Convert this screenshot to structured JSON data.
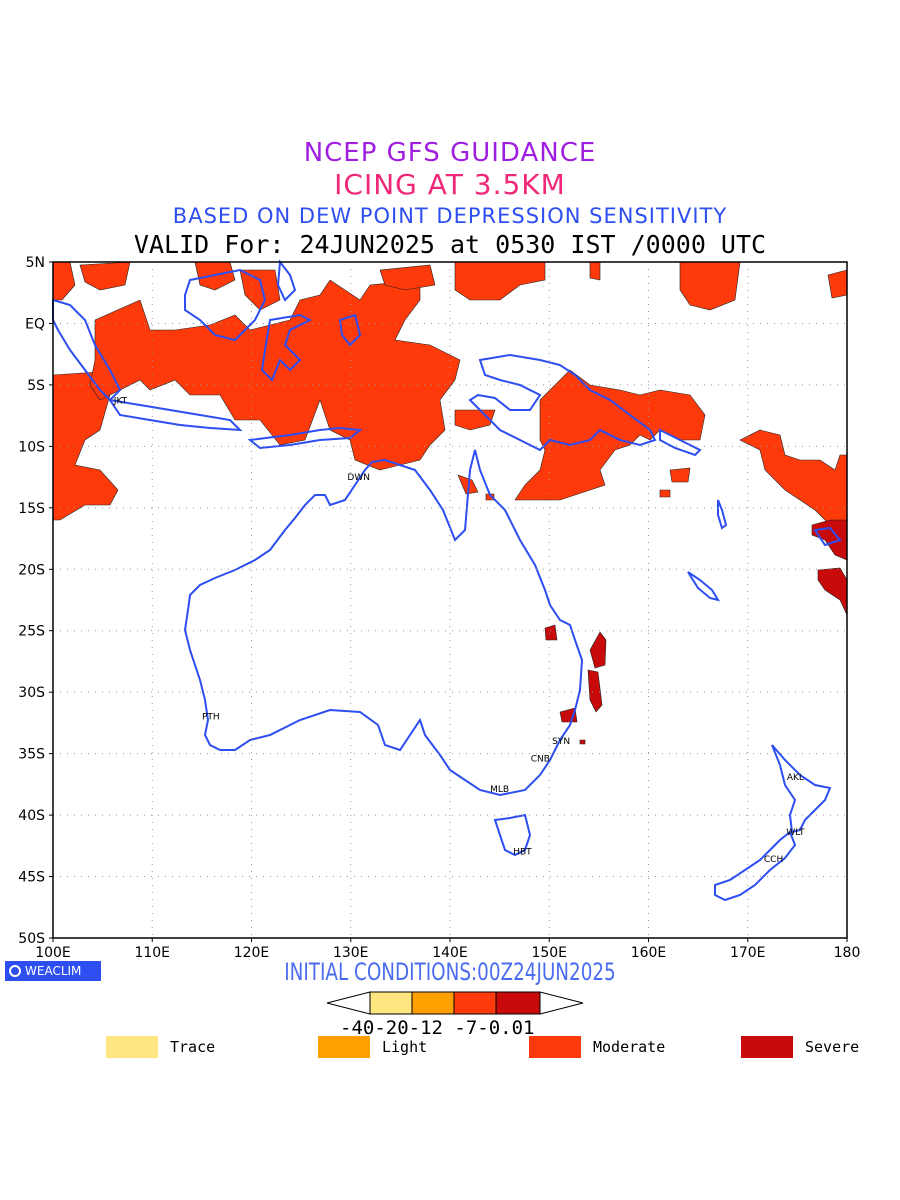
{
  "titles": {
    "line1": "NCEP GFS GUIDANCE",
    "line2": "ICING AT 3.5KM",
    "line3": "BASED ON DEW POINT DEPRESSION SENSITIVITY",
    "line4": "VALID For: 24JUN2025 at 0530 IST /0000 UTC"
  },
  "map": {
    "lon_ticks": [
      "100E",
      "110E",
      "120E",
      "130E",
      "140E",
      "150E",
      "160E",
      "170E",
      "180"
    ],
    "lat_ticks": [
      "5N",
      "EQ",
      "5S",
      "10S",
      "15S",
      "20S",
      "25S",
      "30S",
      "35S",
      "40S",
      "45S",
      "50S"
    ],
    "cities": [
      {
        "label": "JKT",
        "lon": 106.8,
        "lat": -6.2
      },
      {
        "label": "DWN",
        "lon": 130.8,
        "lat": -12.4
      },
      {
        "label": "PTH",
        "lon": 115.9,
        "lat": -31.9
      },
      {
        "label": "SYN",
        "lon": 151.2,
        "lat": -33.9
      },
      {
        "label": "CNB",
        "lon": 149.1,
        "lat": -35.3
      },
      {
        "label": "MLB",
        "lon": 145.0,
        "lat": -37.8
      },
      {
        "label": "HBT",
        "lon": 147.3,
        "lat": -42.9
      },
      {
        "label": "AKL",
        "lon": 174.8,
        "lat": -36.8
      },
      {
        "label": "WLT",
        "lon": 174.8,
        "lat": -41.3
      },
      {
        "label": "CCH",
        "lon": 172.6,
        "lat": -43.5
      }
    ],
    "colors": {
      "coast": "#2d4ef0",
      "moderate": "#ff3a0a",
      "severe": "#c80a0a",
      "grid": "#999999"
    }
  },
  "logo": {
    "text": "WEACLIM"
  },
  "initial_conditions": "INITIAL CONDITIONS:00Z24JUN2025",
  "colorbar": {
    "labels": "-40-20-12 -7-0.01",
    "colors": [
      "#ffe680",
      "#ffa000",
      "#ff3a0a",
      "#c80a0a"
    ]
  },
  "legend": [
    {
      "label": "Trace",
      "color": "#ffe680"
    },
    {
      "label": "Light",
      "color": "#ffa000"
    },
    {
      "label": "Moderate",
      "color": "#ff3a0a"
    },
    {
      "label": "Severe",
      "color": "#c80a0a"
    }
  ]
}
